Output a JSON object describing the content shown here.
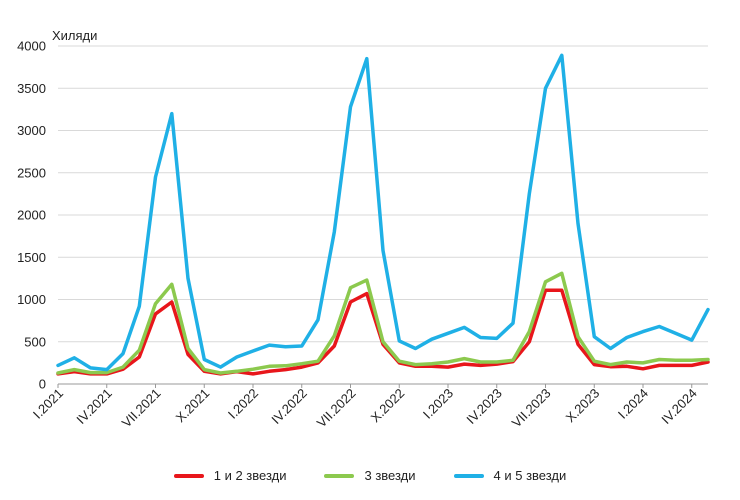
{
  "chart_data": {
    "type": "line",
    "title": "",
    "ylabel": "Хиляди",
    "xlabel": "",
    "ylim": [
      0,
      4000
    ],
    "yticks": [
      0,
      500,
      1000,
      1500,
      2000,
      2500,
      3000,
      3500,
      4000
    ],
    "grid": true,
    "legend_position": "bottom",
    "x_tick_labels": [
      {
        "index": 0,
        "label": "I.2021"
      },
      {
        "index": 3,
        "label": "IV.2021"
      },
      {
        "index": 6,
        "label": "VII.2021"
      },
      {
        "index": 9,
        "label": "X.2021"
      },
      {
        "index": 12,
        "label": "I.2022"
      },
      {
        "index": 15,
        "label": "IV.2022"
      },
      {
        "index": 18,
        "label": "VII.2022"
      },
      {
        "index": 21,
        "label": "X.2022"
      },
      {
        "index": 24,
        "label": "I.2023"
      },
      {
        "index": 27,
        "label": "IV.2023"
      },
      {
        "index": 30,
        "label": "VII.2023"
      },
      {
        "index": 33,
        "label": "X.2023"
      },
      {
        "index": 36,
        "label": "I.2024"
      },
      {
        "index": 39,
        "label": "IV.2024"
      }
    ],
    "series": [
      {
        "name": "1 и 2 звезди",
        "color": "#e8161b",
        "values": [
          120,
          145,
          120,
          120,
          175,
          320,
          830,
          970,
          350,
          150,
          120,
          145,
          120,
          150,
          170,
          200,
          250,
          450,
          970,
          1070,
          470,
          250,
          210,
          210,
          200,
          235,
          220,
          235,
          265,
          500,
          1110,
          1110,
          470,
          230,
          205,
          210,
          180,
          220,
          220,
          220,
          260
        ]
      },
      {
        "name": "3 звезди",
        "color": "#8cc94e",
        "values": [
          130,
          170,
          135,
          135,
          200,
          400,
          950,
          1180,
          420,
          170,
          130,
          150,
          175,
          210,
          215,
          240,
          270,
          570,
          1140,
          1230,
          500,
          270,
          230,
          240,
          260,
          300,
          260,
          260,
          280,
          620,
          1210,
          1310,
          560,
          270,
          230,
          260,
          250,
          290,
          280,
          280,
          290
        ]
      },
      {
        "name": "4 и 5 звезди",
        "color": "#1fb0e6",
        "values": [
          220,
          310,
          190,
          170,
          360,
          920,
          2450,
          3200,
          1250,
          290,
          200,
          320,
          390,
          460,
          440,
          450,
          760,
          1800,
          3280,
          3850,
          1580,
          510,
          420,
          530,
          600,
          670,
          550,
          540,
          720,
          2250,
          3500,
          3890,
          1900,
          560,
          420,
          550,
          620,
          680,
          600,
          520,
          880
        ]
      }
    ]
  }
}
